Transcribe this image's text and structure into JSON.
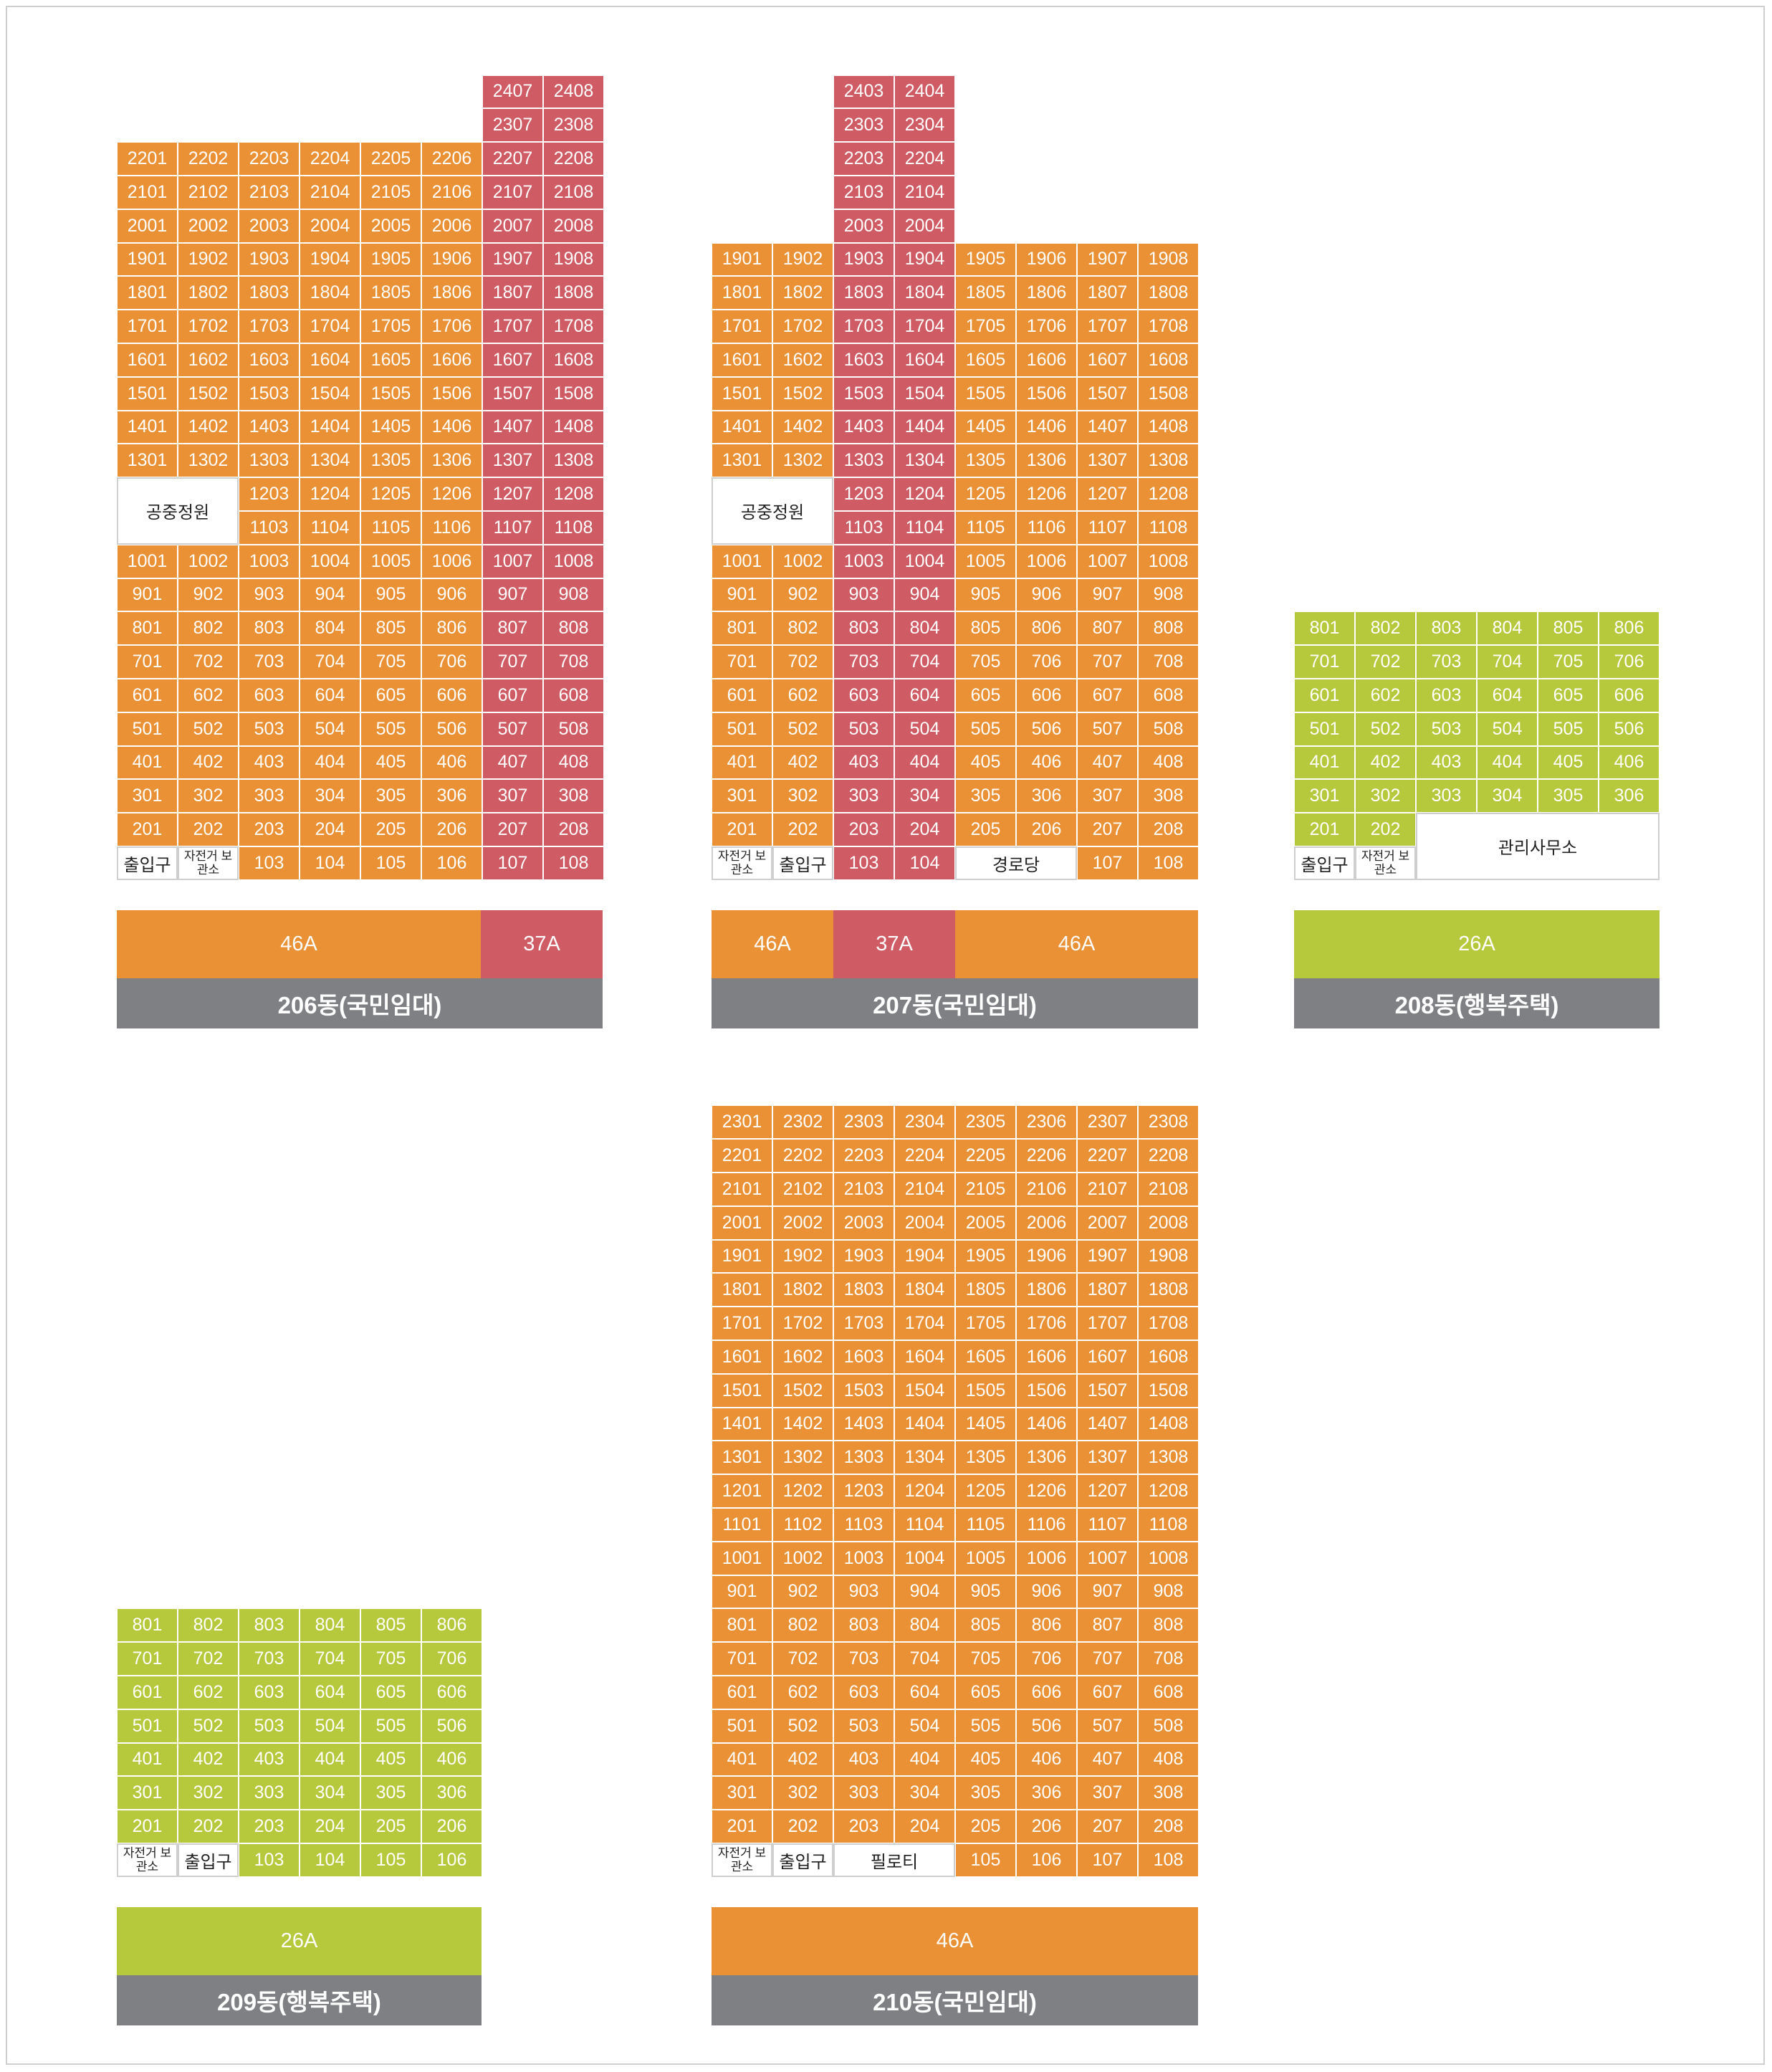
{
  "buildings": [
    {
      "name": "206동(국민임대)",
      "types": [
        "46A",
        "37A"
      ]
    },
    {
      "name": "207동(국민임대)",
      "types": [
        "46A",
        "37A",
        "46A"
      ]
    },
    {
      "name": "208동(행복주택)",
      "types": [
        "26A"
      ]
    },
    {
      "name": "209동(행복주택)",
      "types": [
        "26A"
      ]
    },
    {
      "name": "210동(국민임대)",
      "types": [
        "46A"
      ]
    }
  ],
  "facilities": {
    "garden": "공중정원",
    "entrance": "출입구",
    "bike": "자전거 보관소",
    "senior": "경로당",
    "office": "관리사무소",
    "piloti": "필로티"
  },
  "colors": {
    "unit_46A": "#e99134",
    "unit_37A": "#cf5b64",
    "unit_26A": "#b6c93c",
    "label": "#7f8083"
  }
}
